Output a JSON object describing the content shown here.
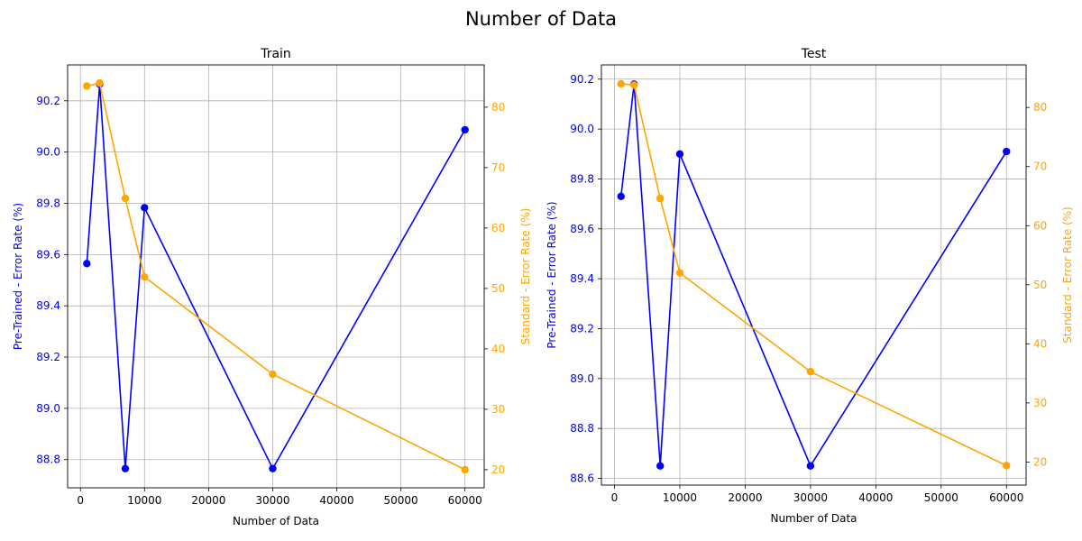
{
  "figure": {
    "title": "Number of Data"
  },
  "colors": {
    "primary": "#0000ff",
    "secondary": "#ffa500",
    "grid": "#b0b0b0",
    "axis": "#000000"
  },
  "chart_data": [
    {
      "type": "line",
      "title": "Train",
      "xlabel": "Number of Data",
      "xlim": [
        -2000,
        63000
      ],
      "xticks": [
        0,
        10000,
        20000,
        30000,
        40000,
        50000,
        60000
      ],
      "grid": true,
      "left_axis": {
        "label": "Pre-Trained - Error Rate (%)",
        "ylim": [
          88.69,
          90.34
        ],
        "ticks": [
          88.8,
          89.0,
          89.2,
          89.4,
          89.6,
          89.8,
          90.0,
          90.2
        ],
        "decimals": 1
      },
      "right_axis": {
        "label": "Standard - Error Rate (%)",
        "ylim": [
          17.0,
          87.0
        ],
        "ticks": [
          20,
          30,
          40,
          50,
          60,
          70,
          80
        ],
        "decimals": 0
      },
      "x": [
        1000,
        3000,
        7000,
        10000,
        30000,
        60000
      ],
      "series": [
        {
          "axis": "left",
          "color": "#0000ff",
          "values": [
            89.565,
            90.265,
            88.765,
            89.783,
            88.765,
            90.087
          ]
        },
        {
          "axis": "right",
          "color": "#ffa500",
          "values": [
            83.5,
            84.0,
            64.9,
            51.9,
            35.8,
            20.0
          ]
        }
      ]
    },
    {
      "type": "line",
      "title": "Test",
      "xlabel": "Number of Data",
      "xlim": [
        -2000,
        63000
      ],
      "xticks": [
        0,
        10000,
        20000,
        30000,
        40000,
        50000,
        60000
      ],
      "grid": true,
      "left_axis": {
        "label": "Pre-Trained - Error Rate (%)",
        "ylim": [
          88.573,
          90.257
        ],
        "ticks": [
          88.6,
          88.8,
          89.0,
          89.2,
          89.4,
          89.6,
          89.8,
          90.0,
          90.2
        ],
        "decimals": 1
      },
      "right_axis": {
        "label": "Standard - Error Rate (%)",
        "ylim": [
          16.1,
          87.2
        ],
        "ticks": [
          20,
          30,
          40,
          50,
          60,
          70,
          80
        ],
        "decimals": 0
      },
      "x": [
        1000,
        3000,
        7000,
        10000,
        30000,
        60000
      ],
      "series": [
        {
          "axis": "left",
          "color": "#0000ff",
          "values": [
            89.73,
            90.18,
            88.65,
            89.9,
            88.65,
            89.91
          ]
        },
        {
          "axis": "right",
          "color": "#ffa500",
          "values": [
            84.0,
            83.8,
            64.6,
            52.0,
            35.3,
            19.4
          ]
        }
      ]
    }
  ]
}
